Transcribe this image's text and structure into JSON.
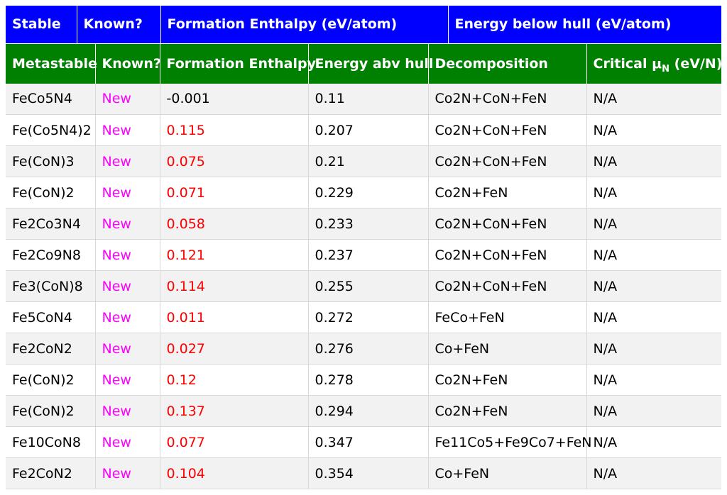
{
  "colors": {
    "top_header_bg": "#0000ff",
    "sub_header_bg": "#008000",
    "known_text": "#ff00ff",
    "positive_enthalpy": "#ff0000",
    "row_alt_bg": "#f2f2f2"
  },
  "top_header": {
    "stable": "Stable",
    "known": "Known?",
    "formation_enthalpy": "Formation Enthalpy (eV/atom)",
    "energy_below_hull": "Energy below hull (eV/atom)"
  },
  "sub_header": {
    "metastable": "Metastable",
    "known": "Known?",
    "formation_enthalpy": "Formation Enthalpy",
    "energy_abv_hull": "Energy abv hull",
    "decomposition": "Decomposition",
    "critical_mu_prefix": "Critical μ",
    "critical_mu_sub": "N",
    "critical_mu_suffix": " (eV/N)"
  },
  "rows": [
    {
      "compound": "FeCo5N4",
      "known": "New",
      "formation_enthalpy": "-0.001",
      "energy_above_hull": "0.11",
      "decomposition": "Co2N+CoN+FeN",
      "critical_mu": "N/A"
    },
    {
      "compound": "Fe(Co5N4)2",
      "known": "New",
      "formation_enthalpy": "0.115",
      "energy_above_hull": "0.207",
      "decomposition": "Co2N+CoN+FeN",
      "critical_mu": "N/A"
    },
    {
      "compound": "Fe(CoN)3",
      "known": "New",
      "formation_enthalpy": "0.075",
      "energy_above_hull": "0.21",
      "decomposition": "Co2N+CoN+FeN",
      "critical_mu": "N/A"
    },
    {
      "compound": "Fe(CoN)2",
      "known": "New",
      "formation_enthalpy": "0.071",
      "energy_above_hull": "0.229",
      "decomposition": "Co2N+FeN",
      "critical_mu": "N/A"
    },
    {
      "compound": "Fe2Co3N4",
      "known": "New",
      "formation_enthalpy": "0.058",
      "energy_above_hull": "0.233",
      "decomposition": "Co2N+CoN+FeN",
      "critical_mu": "N/A"
    },
    {
      "compound": "Fe2Co9N8",
      "known": "New",
      "formation_enthalpy": "0.121",
      "energy_above_hull": "0.237",
      "decomposition": "Co2N+CoN+FeN",
      "critical_mu": "N/A"
    },
    {
      "compound": "Fe3(CoN)8",
      "known": "New",
      "formation_enthalpy": "0.114",
      "energy_above_hull": "0.255",
      "decomposition": "Co2N+CoN+FeN",
      "critical_mu": "N/A"
    },
    {
      "compound": "Fe5CoN4",
      "known": "New",
      "formation_enthalpy": "0.011",
      "energy_above_hull": "0.272",
      "decomposition": "FeCo+FeN",
      "critical_mu": "N/A"
    },
    {
      "compound": "Fe2CoN2",
      "known": "New",
      "formation_enthalpy": "0.027",
      "energy_above_hull": "0.276",
      "decomposition": "Co+FeN",
      "critical_mu": "N/A"
    },
    {
      "compound": "Fe(CoN)2",
      "known": "New",
      "formation_enthalpy": "0.12",
      "energy_above_hull": "0.278",
      "decomposition": "Co2N+FeN",
      "critical_mu": "N/A"
    },
    {
      "compound": "Fe(CoN)2",
      "known": "New",
      "formation_enthalpy": "0.137",
      "energy_above_hull": "0.294",
      "decomposition": "Co2N+FeN",
      "critical_mu": "N/A"
    },
    {
      "compound": "Fe10CoN8",
      "known": "New",
      "formation_enthalpy": "0.077",
      "energy_above_hull": "0.347",
      "decomposition": "Fe11Co5+Fe9Co7+FeN",
      "critical_mu": "N/A"
    },
    {
      "compound": "Fe2CoN2",
      "known": "New",
      "formation_enthalpy": "0.104",
      "energy_above_hull": "0.354",
      "decomposition": "Co+FeN",
      "critical_mu": "N/A"
    }
  ]
}
